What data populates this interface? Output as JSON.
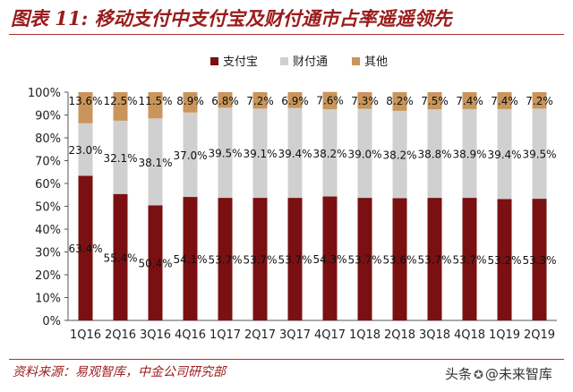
{
  "figure": {
    "title": "图表 11: 移动支付中支付宝及财付通市占率遥遥领先",
    "source": "资料来源：易观智库，中金公司研究部",
    "watermark": {
      "prefix": "头条",
      "icon": "wechat-icon",
      "name": "@未来智库"
    }
  },
  "colors": {
    "title": "#9b1b1b",
    "alipay": "#7a1012",
    "tenpay": "#d0d0d0",
    "other": "#c9955a"
  },
  "chart_data": {
    "type": "bar",
    "stacked": true,
    "title": "",
    "xlabel": "",
    "ylabel": "",
    "ylim": [
      0,
      100
    ],
    "yticks": [
      "0%",
      "10%",
      "20%",
      "30%",
      "40%",
      "50%",
      "60%",
      "70%",
      "80%",
      "90%",
      "100%"
    ],
    "legend_position": "top-center",
    "grid": false,
    "categories": [
      "1Q16",
      "2Q16",
      "3Q16",
      "4Q16",
      "1Q17",
      "2Q17",
      "3Q17",
      "4Q17",
      "1Q18",
      "2Q18",
      "3Q18",
      "4Q18",
      "1Q19",
      "2Q19"
    ],
    "series": [
      {
        "name": "支付宝",
        "color": "#7a1012",
        "values": [
          63.4,
          55.4,
          50.4,
          54.1,
          53.7,
          53.7,
          53.7,
          54.3,
          53.7,
          53.6,
          53.7,
          53.7,
          53.2,
          53.3
        ],
        "labels": [
          "63.4%",
          "55.4%",
          "50.4%",
          "54.1%",
          "53.7%",
          "53.7%",
          "53.7%",
          "54.3%",
          "53.7%",
          "53.6%",
          "53.7%",
          "53.7%",
          "53.2%",
          "53.3%"
        ]
      },
      {
        "name": "财付通",
        "color": "#d0d0d0",
        "values": [
          23.0,
          32.1,
          38.1,
          37.0,
          39.5,
          39.1,
          39.4,
          38.2,
          39.0,
          38.2,
          38.8,
          38.9,
          39.4,
          39.5
        ],
        "labels": [
          "23.0%",
          "32.1%",
          "38.1%",
          "37.0%",
          "39.5%",
          "39.1%",
          "39.4%",
          "38.2%",
          "39.0%",
          "38.2%",
          "38.8%",
          "38.9%",
          "39.4%",
          "39.5%"
        ]
      },
      {
        "name": "其他",
        "color": "#c9955a",
        "values": [
          13.6,
          12.5,
          11.5,
          8.9,
          6.8,
          7.2,
          6.9,
          7.6,
          7.3,
          8.2,
          7.5,
          7.4,
          7.4,
          7.2
        ],
        "labels": [
          "13.6%",
          "12.5%",
          "11.5%",
          "8.9%",
          "6.8%",
          "7.2%",
          "6.9%",
          "7.6%",
          "7.3%",
          "8.2%",
          "7.5%",
          "7.4%",
          "7.4%",
          "7.2%"
        ]
      }
    ]
  }
}
